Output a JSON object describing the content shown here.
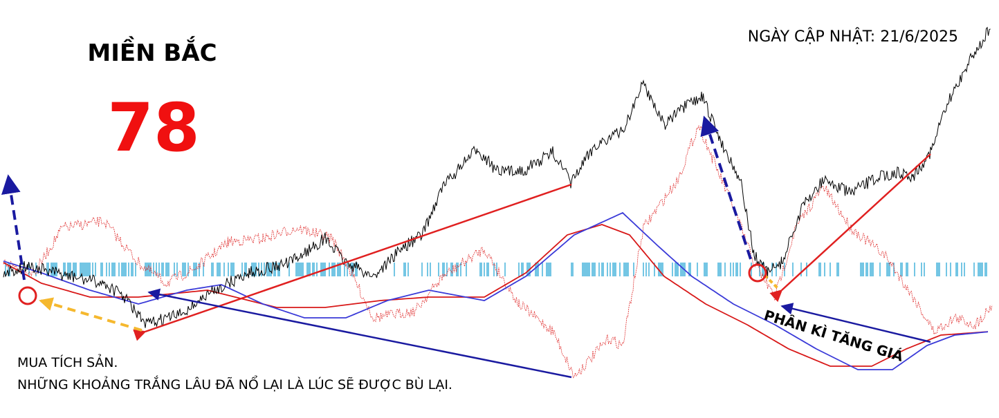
{
  "header": {
    "region": "MIỀN BẮC",
    "number": 78,
    "updated": "NGÀY CẬP NHẬT: 21/6/2025"
  },
  "notes": [
    "MUA TÍCH SẢN.",
    "NHỮNG KHOẢNG TRẮNG LÂU ĐÃ NỔ LẠI LÀ LÚC SẼ ĐƯỢC BÙ LẠI."
  ],
  "annotation": "PHÂN KÌ TĂNG GIÁ"
}
